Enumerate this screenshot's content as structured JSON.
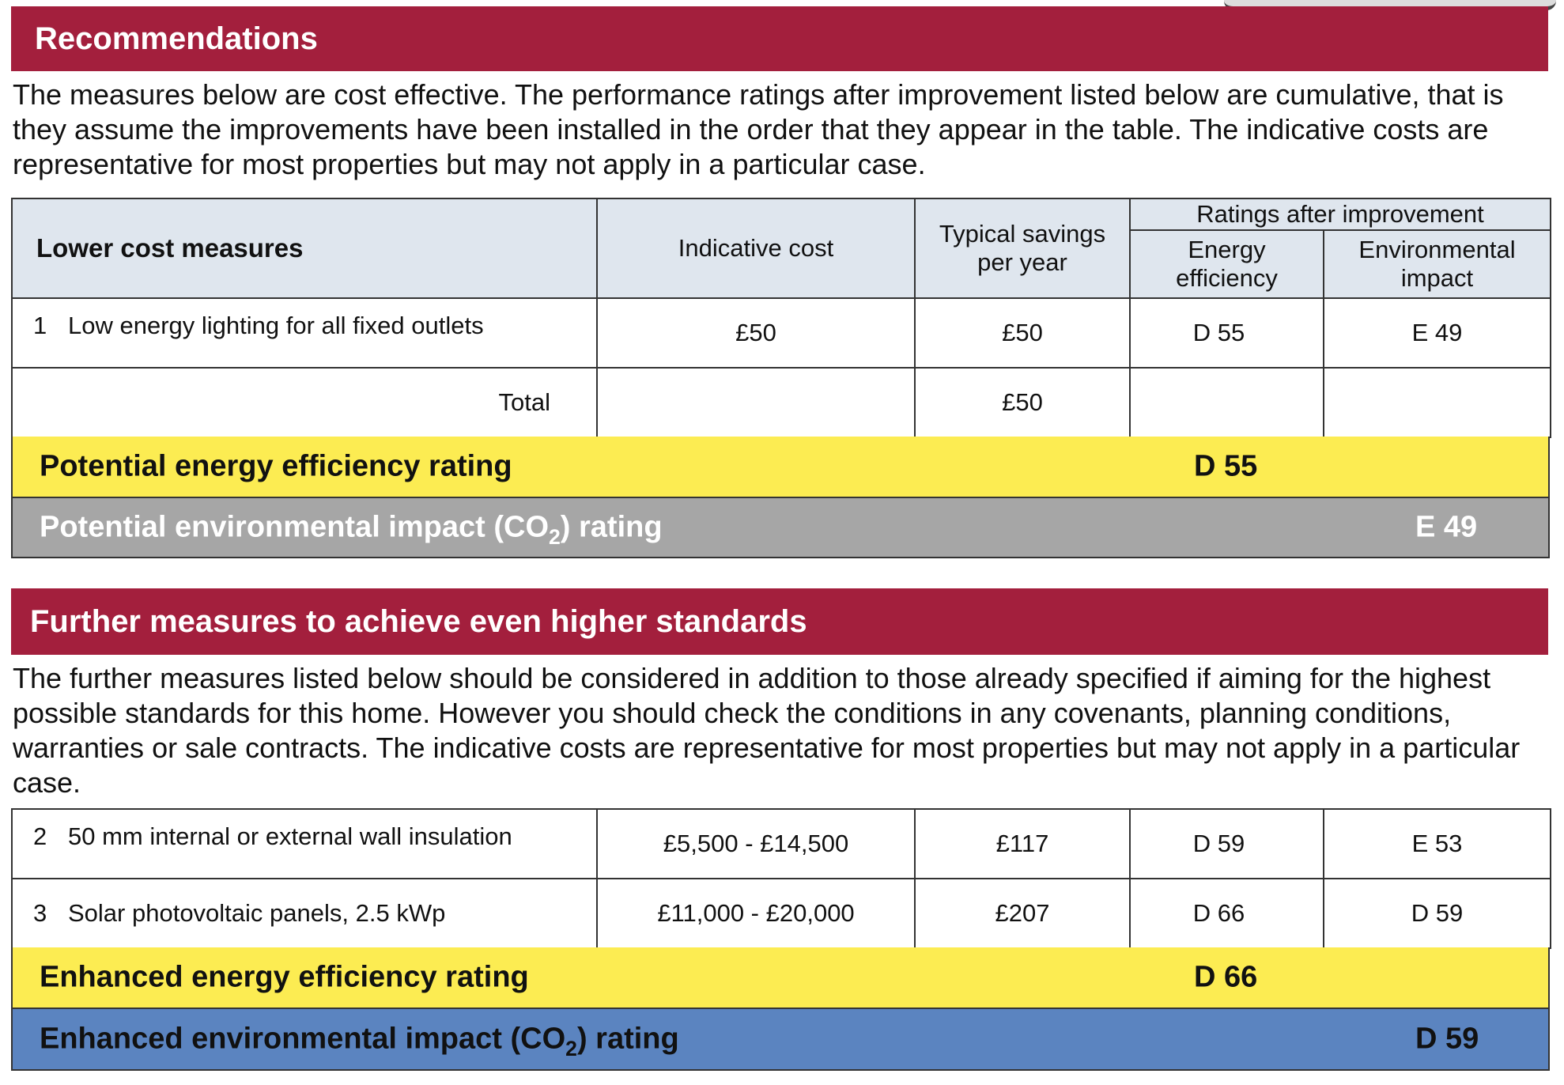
{
  "recommendations": {
    "title": "Recommendations",
    "intro": "The measures below are cost effective.  The performance ratings after improvement listed below are cumulative, that is they assume the improvements have been installed in the order that they appear in the table. The indicative costs are representative for most properties but may not apply in a particular case.",
    "headers": {
      "lower_cost_measures": "Lower cost measures",
      "indicative_cost": "Indicative cost",
      "typical_savings": "Typical savings per year",
      "ratings_after": "Ratings after improvement",
      "energy_efficiency": "Energy efficiency",
      "environmental_impact": "Environmental impact"
    },
    "rows": [
      {
        "num": "1",
        "measure": "Low energy lighting for all fixed outlets",
        "cost": "£50",
        "savings": "£50",
        "energy": "D 55",
        "environment": "E 49"
      }
    ],
    "total": {
      "label": "Total",
      "savings": "£50"
    },
    "potential_energy": {
      "label": "Potential energy efficiency rating",
      "value": "D 55"
    },
    "potential_env": {
      "label_pre": "Potential environmental impact (CO",
      "label_sub": "2",
      "label_post": ") rating",
      "value": "E 49"
    }
  },
  "further": {
    "title": "Further measures to achieve even higher standards",
    "intro": "The further measures listed below should be considered in addition to those already specified if aiming for the highest possible standards for this home. However you should check the conditions in any covenants, planning conditions, warranties or sale contracts. The indicative costs are representative for most properties but may not apply in a particular case.",
    "rows": [
      {
        "num": "2",
        "measure": "50 mm internal or external wall insulation",
        "cost": "£5,500 - £14,500",
        "savings": "£117",
        "energy": "D 59",
        "environment": "E 53"
      },
      {
        "num": "3",
        "measure": "Solar photovoltaic panels, 2.5 kWp",
        "cost": "£11,000 - £20,000",
        "savings": "£207",
        "energy": "D 66",
        "environment": "D 59"
      }
    ],
    "enhanced_energy": {
      "label": "Enhanced energy efficiency rating",
      "value": "D 66"
    },
    "enhanced_env": {
      "label_pre": "Enhanced environmental impact (CO",
      "label_sub": "2",
      "label_post": ") rating",
      "value": "D 59"
    }
  },
  "colors": {
    "banner": "#a31f3d",
    "yellow_band": "#fcec52",
    "grey_band": "#a6a6a6",
    "blue_band": "#5b84c0",
    "header_fill": "#dfe6ee"
  }
}
